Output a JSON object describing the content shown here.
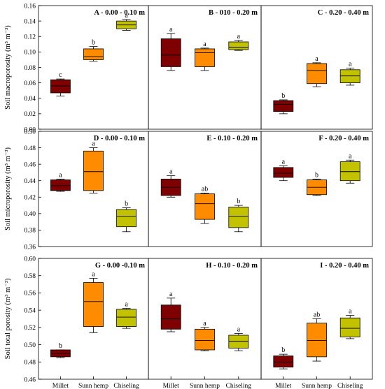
{
  "colors": {
    "Millet": "#7f0000",
    "Sunn hemp": "#ff8c00",
    "Chiseling": "#c2c200"
  },
  "chart_data": {
    "type": "box",
    "categories": [
      "Millet",
      "Sunn hemp",
      "Chiseling"
    ],
    "rows": [
      {
        "ylabel": "Soil macroporosity (m³ m⁻³)",
        "ylim": [
          0,
          0.16
        ],
        "yticks": [
          "0.00",
          "0.02",
          "0.04",
          "0.06",
          "0.08",
          "0.10",
          "0.12",
          "0.14",
          "0.16"
        ],
        "panels": [
          {
            "title": "A - 0.00 - 0.10 m",
            "boxes": [
              {
                "category": "Millet",
                "min": 0.043,
                "q1": 0.047,
                "median": 0.056,
                "q3": 0.064,
                "max": 0.065,
                "letter": "c"
              },
              {
                "category": "Sunn hemp",
                "min": 0.088,
                "q1": 0.09,
                "median": 0.094,
                "q3": 0.104,
                "max": 0.107,
                "letter": "b"
              },
              {
                "category": "Chiseling",
                "min": 0.128,
                "q1": 0.13,
                "median": 0.135,
                "q3": 0.14,
                "max": 0.142,
                "letter": "a"
              }
            ]
          },
          {
            "title": "B - 010 - 0.20 m",
            "boxes": [
              {
                "category": "Millet",
                "min": 0.076,
                "q1": 0.081,
                "median": 0.096,
                "q3": 0.117,
                "max": 0.124,
                "letter": "a"
              },
              {
                "category": "Sunn hemp",
                "min": 0.076,
                "q1": 0.081,
                "median": 0.099,
                "q3": 0.104,
                "max": 0.105,
                "letter": "a"
              },
              {
                "category": "Chiseling",
                "min": 0.102,
                "q1": 0.103,
                "median": 0.106,
                "q3": 0.113,
                "max": 0.115,
                "letter": "a"
              }
            ]
          },
          {
            "title": "C - 0.20 - 0.40 m",
            "boxes": [
              {
                "category": "Millet",
                "min": 0.02,
                "q1": 0.023,
                "median": 0.032,
                "q3": 0.037,
                "max": 0.038,
                "letter": "b"
              },
              {
                "category": "Sunn hemp",
                "min": 0.055,
                "q1": 0.059,
                "median": 0.076,
                "q3": 0.085,
                "max": 0.086,
                "letter": "a"
              },
              {
                "category": "Chiseling",
                "min": 0.057,
                "q1": 0.06,
                "median": 0.069,
                "q3": 0.077,
                "max": 0.079,
                "letter": "a"
              }
            ]
          }
        ]
      },
      {
        "ylabel": "Soil microporosity (m³ m⁻³)",
        "ylim": [
          0.36,
          0.5
        ],
        "yticks": [
          "0.36",
          "0.38",
          "0.40",
          "0.42",
          "0.44",
          "0.46",
          "0.48",
          "0.50"
        ],
        "panels": [
          {
            "title": "D - 0.00 - 0.10 m",
            "boxes": [
              {
                "category": "Millet",
                "min": 0.427,
                "q1": 0.428,
                "median": 0.434,
                "q3": 0.441,
                "max": 0.442,
                "letter": "a"
              },
              {
                "category": "Sunn hemp",
                "min": 0.425,
                "q1": 0.428,
                "median": 0.451,
                "q3": 0.476,
                "max": 0.48,
                "letter": "a"
              },
              {
                "category": "Chiseling",
                "min": 0.378,
                "q1": 0.384,
                "median": 0.397,
                "q3": 0.405,
                "max": 0.407,
                "letter": "b"
              }
            ]
          },
          {
            "title": "E - 0.10 - 0.20 m",
            "boxes": [
              {
                "category": "Millet",
                "min": 0.42,
                "q1": 0.422,
                "median": 0.432,
                "q3": 0.442,
                "max": 0.446,
                "letter": "a"
              },
              {
                "category": "Sunn hemp",
                "min": 0.388,
                "q1": 0.393,
                "median": 0.412,
                "q3": 0.424,
                "max": 0.425,
                "letter": "ab"
              },
              {
                "category": "Chiseling",
                "min": 0.378,
                "q1": 0.383,
                "median": 0.397,
                "q3": 0.408,
                "max": 0.41,
                "letter": "b"
              }
            ]
          },
          {
            "title": "F - 0.20 - 0.40 m",
            "boxes": [
              {
                "category": "Millet",
                "min": 0.44,
                "q1": 0.444,
                "median": 0.449,
                "q3": 0.456,
                "max": 0.458,
                "letter": "a"
              },
              {
                "category": "Sunn hemp",
                "min": 0.422,
                "q1": 0.423,
                "median": 0.432,
                "q3": 0.441,
                "max": 0.442,
                "letter": "b"
              },
              {
                "category": "Chiseling",
                "min": 0.437,
                "q1": 0.44,
                "median": 0.451,
                "q3": 0.463,
                "max": 0.465,
                "letter": "a"
              }
            ]
          }
        ]
      },
      {
        "ylabel": "Soil total porosity (m³ m⁻³)",
        "ylim": [
          0.46,
          0.6
        ],
        "yticks": [
          "0.46",
          "0.48",
          "0.50",
          "0.52",
          "0.54",
          "0.56",
          "0.58",
          "0.60"
        ],
        "panels": [
          {
            "title": "G - 0.00 -0.10 m",
            "boxes": [
              {
                "category": "Millet",
                "min": 0.485,
                "q1": 0.486,
                "median": 0.49,
                "q3": 0.494,
                "max": 0.494,
                "letter": "b"
              },
              {
                "category": "Sunn hemp",
                "min": 0.514,
                "q1": 0.521,
                "median": 0.55,
                "q3": 0.572,
                "max": 0.577,
                "letter": "a"
              },
              {
                "category": "Chiseling",
                "min": 0.519,
                "q1": 0.521,
                "median": 0.532,
                "q3": 0.541,
                "max": 0.542,
                "letter": "a"
              }
            ]
          },
          {
            "title": "H - 0.10 - 0.20 m",
            "boxes": [
              {
                "category": "Millet",
                "min": 0.515,
                "q1": 0.518,
                "median": 0.53,
                "q3": 0.546,
                "max": 0.554,
                "letter": "a"
              },
              {
                "category": "Sunn hemp",
                "min": 0.493,
                "q1": 0.494,
                "median": 0.505,
                "q3": 0.518,
                "max": 0.52,
                "letter": "a"
              },
              {
                "category": "Chiseling",
                "min": 0.493,
                "q1": 0.496,
                "median": 0.504,
                "q3": 0.511,
                "max": 0.513,
                "letter": "a"
              }
            ]
          },
          {
            "title": "I - 0.20 - 0.40 m",
            "boxes": [
              {
                "category": "Millet",
                "min": 0.472,
                "q1": 0.474,
                "median": 0.48,
                "q3": 0.487,
                "max": 0.489,
                "letter": "b"
              },
              {
                "category": "Sunn hemp",
                "min": 0.481,
                "q1": 0.486,
                "median": 0.505,
                "q3": 0.525,
                "max": 0.53,
                "letter": "ab"
              },
              {
                "category": "Chiseling",
                "min": 0.507,
                "q1": 0.509,
                "median": 0.519,
                "q3": 0.531,
                "max": 0.534,
                "letter": "a"
              }
            ]
          }
        ]
      }
    ]
  }
}
